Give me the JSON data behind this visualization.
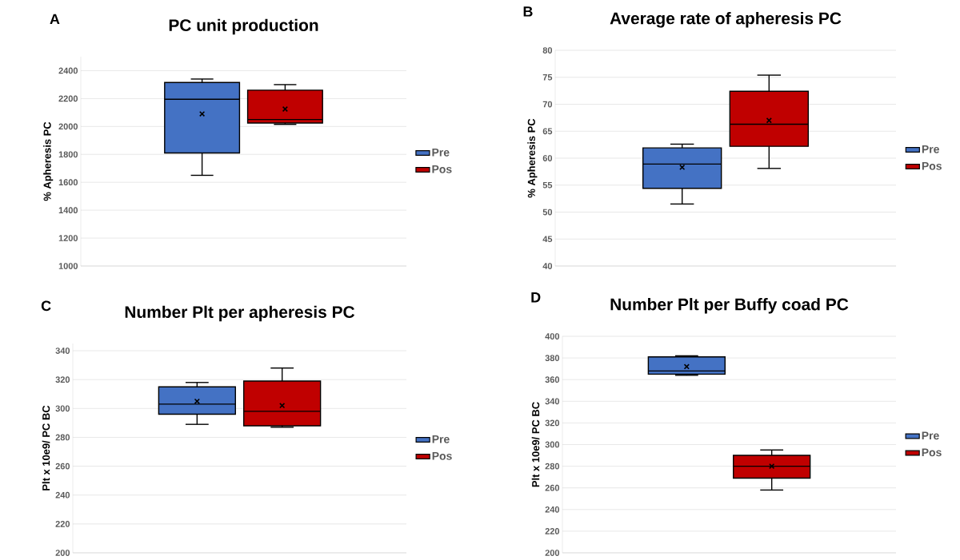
{
  "chart_data": [
    {
      "type": "box",
      "title": "PC unit production",
      "annotations": [
        "A"
      ],
      "ylabel": "% Apheresis PC",
      "categories": [
        null
      ],
      "ylim": [
        1000,
        2500
      ],
      "yticks": [
        1000,
        1200,
        1400,
        1600,
        1800,
        2000,
        2200,
        2400
      ],
      "grid": "y",
      "legend": "right",
      "tick_labels": "y",
      "marker": "cross",
      "series": [
        {
          "name": "Pre",
          "color": "#4472c4",
          "boxes": [
            {
              "low": 1650,
              "q1": 1810,
              "median": 2195,
              "q3": 2315,
              "high": 2340,
              "mean": 2090
            }
          ]
        },
        {
          "name": "Pos",
          "color": "#c00000",
          "boxes": [
            {
              "low": 2015,
              "q1": 2025,
              "median": 2050,
              "q3": 2260,
              "high": 2300,
              "mean": 2125
            }
          ]
        }
      ]
    },
    {
      "type": "box",
      "title": "Average rate of apheresis PC",
      "annotations": [
        "B"
      ],
      "ylabel": "% Apheresis PC",
      "categories": [
        null
      ],
      "ylim": [
        40,
        80
      ],
      "yticks": [
        40,
        45,
        50,
        55,
        60,
        65,
        70,
        75,
        80
      ],
      "grid": "y",
      "legend": "right",
      "tick_labels": "y",
      "marker": "cross",
      "series": [
        {
          "name": "Pre",
          "color": "#4472c4",
          "boxes": [
            {
              "low": 51.5,
              "q1": 54.4,
              "median": 58.9,
              "q3": 61.9,
              "high": 62.6,
              "mean": 58.3
            }
          ]
        },
        {
          "name": "Pos",
          "color": "#c00000",
          "boxes": [
            {
              "low": 58.1,
              "q1": 62.2,
              "median": 66.3,
              "q3": 72.4,
              "high": 75.4,
              "mean": 67
            }
          ]
        }
      ]
    },
    {
      "type": "box",
      "title": "Number Plt per apheresis PC",
      "annotations": [
        "C"
      ],
      "ylabel": "Plt x 10e9/ PC BC",
      "categories": [
        null
      ],
      "ylim": [
        200,
        345
      ],
      "yticks": [
        200,
        220,
        240,
        260,
        280,
        300,
        320,
        340
      ],
      "grid": "y",
      "legend": "right",
      "tick_labels": "y",
      "marker": "cross",
      "series": [
        {
          "name": "Pre",
          "color": "#4472c4",
          "boxes": [
            {
              "low": 289,
              "q1": 296,
              "median": 303,
              "q3": 315,
              "high": 318,
              "mean": 305
            }
          ]
        },
        {
          "name": "Pos",
          "color": "#c00000",
          "boxes": [
            {
              "low": 287,
              "q1": 288,
              "median": 298,
              "q3": 319,
              "high": 328,
              "mean": 302
            }
          ]
        }
      ]
    },
    {
      "type": "box",
      "title": "Number Plt per Buffy coad PC",
      "annotations": [
        "D"
      ],
      "ylabel": "Plt x 10e9/ PC BC",
      "categories": [
        null
      ],
      "ylim": [
        200,
        400
      ],
      "yticks": [
        200,
        220,
        240,
        260,
        280,
        300,
        320,
        340,
        360,
        380,
        400
      ],
      "grid": "y",
      "legend": "right",
      "tick_labels": "y",
      "marker": "cross",
      "series": [
        {
          "name": "Pre",
          "color": "#4472c4",
          "boxes": [
            {
              "low": 364,
              "q1": 365,
              "median": 368,
              "q3": 381,
              "high": 382,
              "mean": 372
            }
          ]
        },
        {
          "name": "Pos",
          "color": "#c00000",
          "boxes": [
            {
              "low": 258,
              "q1": 269,
              "median": 280,
              "q3": 290,
              "high": 295,
              "mean": 280
            }
          ]
        }
      ]
    }
  ]
}
